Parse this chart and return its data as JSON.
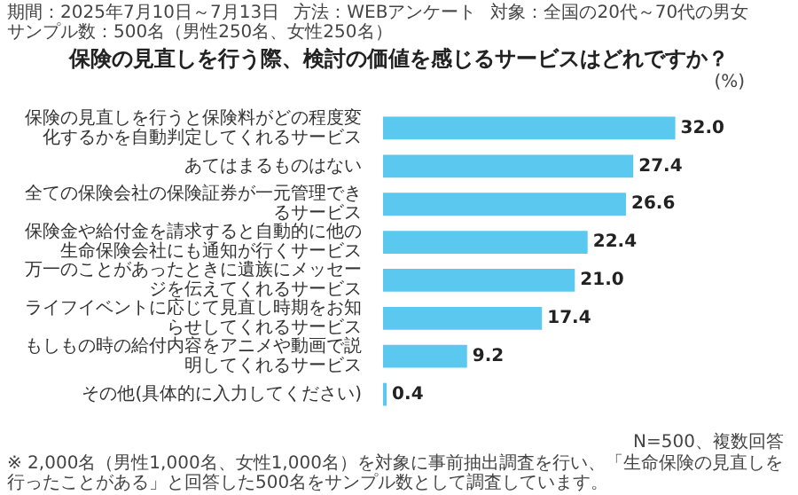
{
  "chart_data": {
    "type": "bar",
    "orientation": "horizontal",
    "title": "保険の見直しを行う際、検討の価値を感じるサービスはどれですか？",
    "categories": [
      "保険の見直しを行うと保険料がどの程度変化するかを自動判定してくれるサービス",
      "あてはまるものはない",
      "全ての保険会社の保険証券が一元管理できるサービス",
      "保険金や給付金を請求すると自動的に他の生命保険会社にも通知が行くサービス",
      "万一のことがあったときに遺族にメッセージを伝えてくれるサービス",
      "ライフイベントに応じて見直し時期をお知らせしてくれるサービス",
      "もしもの時の給付内容をアニメや動画で説明してくれるサービス",
      "その他(具体的に入力してください)"
    ],
    "values": [
      32.0,
      27.4,
      26.6,
      22.4,
      21.0,
      17.4,
      9.2,
      0.4
    ],
    "value_labels": [
      "32.0",
      "27.4",
      "26.6",
      "22.4",
      "21.0",
      "17.4",
      "9.2",
      "0.4"
    ],
    "color": "#5bc8f0",
    "grid": false,
    "legend": false,
    "annotations": [
      "期間：2025年7月10日～7月13日",
      "方法：WEBアンケート",
      "対象：全国の20代～70代の男女",
      "サンプル数：500名（男性250名、女性250名）",
      "(%)",
      "N=500、複数回答",
      "※ 2,000名（男性1,000名、女性1,000名）を対象に事前抽出調査を行い、「生命保険の見直しを行ったことがある」と回答した500名をサンプル数として調査しています。"
    ]
  }
}
